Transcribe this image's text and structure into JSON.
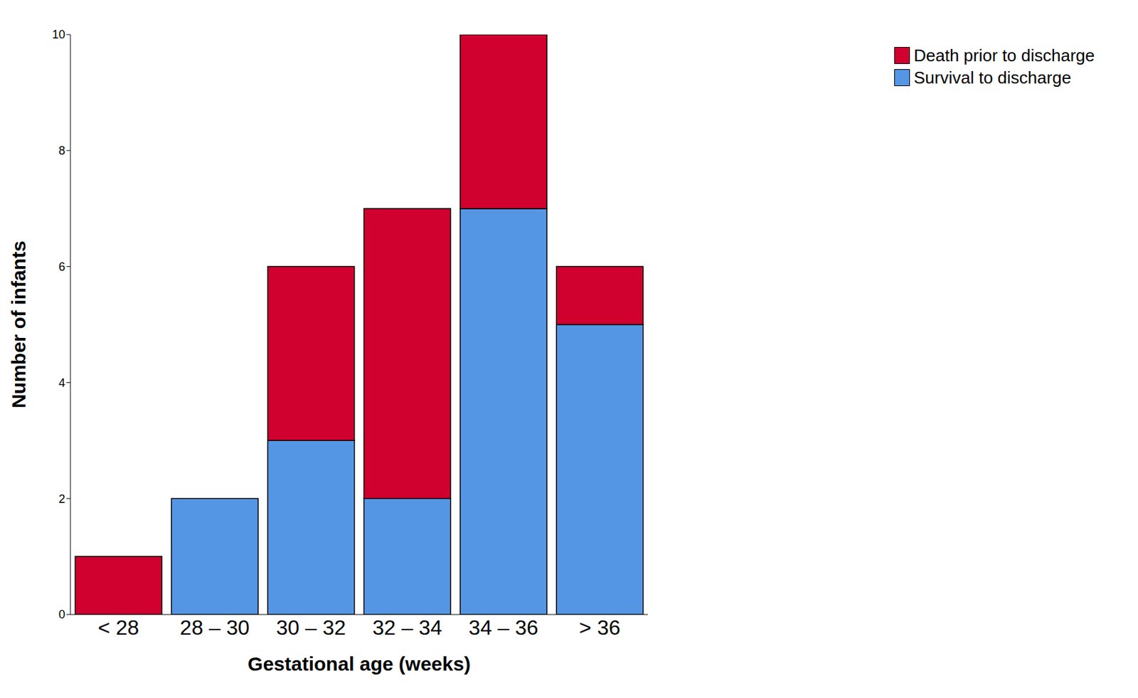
{
  "chart_data": {
    "type": "bar",
    "stacked": true,
    "x_label": "Gestational age (weeks)",
    "y_label": "Number of infants",
    "categories": [
      "< 28",
      "28 – 30",
      "30 – 32",
      "32 – 34",
      "34 – 36",
      "> 36"
    ],
    "series": [
      {
        "name": "Survival to discharge",
        "color": "#5596e4",
        "values": [
          0,
          2,
          3,
          2,
          7,
          5
        ]
      },
      {
        "name": "Death prior to discharge",
        "color": "#d0002f",
        "values": [
          1,
          0,
          3,
          5,
          3,
          1
        ]
      }
    ],
    "ylim": [
      0,
      10
    ],
    "yticks": [
      0,
      2,
      4,
      6,
      8,
      10
    ],
    "grid": false,
    "legend": "upper right"
  }
}
